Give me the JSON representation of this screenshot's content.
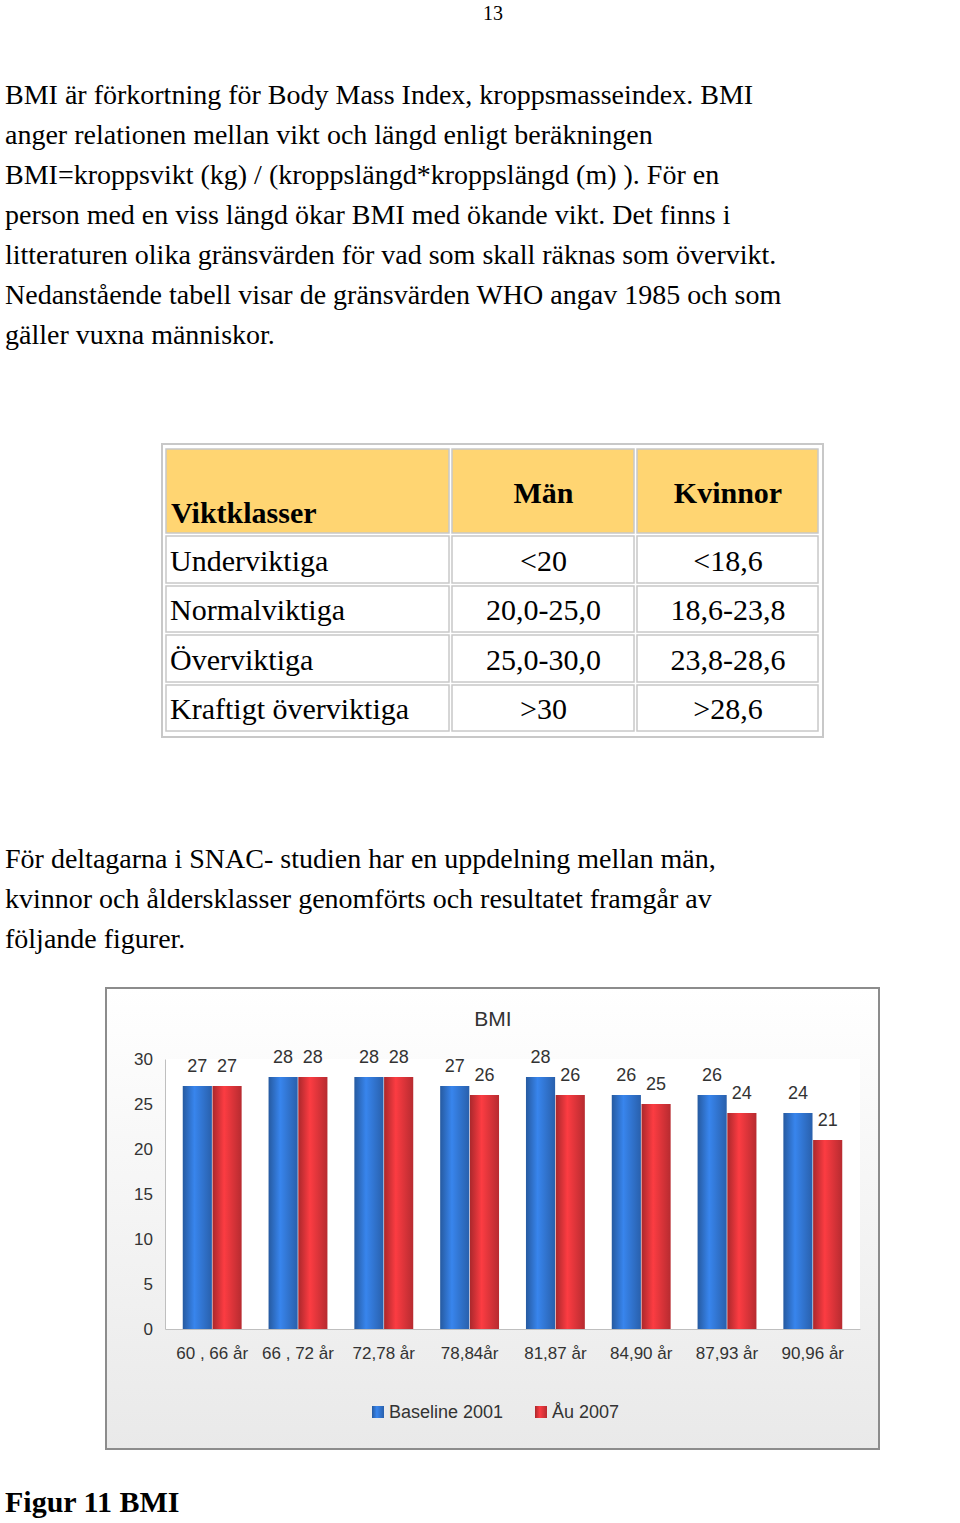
{
  "page_number": "13",
  "paragraphs": [
    {
      "lines": [
        "BMI är förkortning för Body Mass Index, kroppsmasseindex. BMI",
        "anger relationen mellan vikt och längd enligt beräkningen",
        "BMI=kroppsvikt (kg) / (kroppslängd*kroppslängd (m) ). För en",
        "person med en viss längd ökar BMI med ökande vikt. Det finns i",
        "litteraturen olika gränsvärden för vad som skall räknas som övervikt.",
        "Nedanstående tabell visar de gränsvärden WHO angav 1985 och som",
        "gäller vuxna människor."
      ]
    },
    {
      "lines": [
        "För deltagarna i SNAC- studien har en uppdelning mellan män,",
        "kvinnor och åldersklasser genomförts och resultatet framgår av",
        "följande figurer."
      ]
    }
  ],
  "table": {
    "header": [
      "Viktklasser",
      "Män",
      "Kvinnor"
    ],
    "rows": [
      [
        "Underviktiga",
        "<20",
        "<18,6"
      ],
      [
        "Normalviktiga",
        "20,0-25,0",
        "18,6-23,8"
      ],
      [
        "Överviktiga",
        "25,0-30,0",
        "23,8-28,6"
      ],
      [
        "Kraftigt överviktiga",
        ">30",
        ">28,6"
      ]
    ]
  },
  "chart_data": {
    "type": "bar",
    "title": "BMI",
    "categories": [
      "60 , 66 år",
      "66 , 72 år",
      "72,78 år",
      "78,84år",
      "81,87 år",
      "84,90 år",
      "87,93 år",
      "90,96 år"
    ],
    "series": [
      {
        "name": "Baseline 2001",
        "color": "#2f6fc6",
        "values": [
          27,
          28,
          28,
          27,
          28,
          26,
          26,
          24
        ]
      },
      {
        "name": "Åu 2007",
        "color": "#d33237",
        "values": [
          27,
          28,
          28,
          26,
          26,
          25,
          24,
          21
        ]
      }
    ],
    "ylim": [
      0,
      30
    ],
    "yticks": [
      0,
      5,
      10,
      15,
      20,
      25,
      30
    ],
    "grid": false,
    "legend": "bottom",
    "data_labels": true
  },
  "caption": "Figur 11 BMI"
}
